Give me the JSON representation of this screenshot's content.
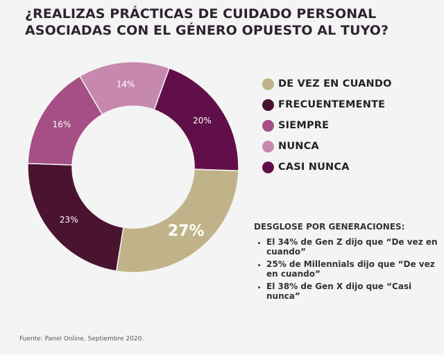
{
  "title_lines": [
    "¿REALIZAS PRÁCTICAS DE CUIDADO PERSONAL",
    "ASOCIADAS CON EL GÉNERO OPUESTO AL TUYO?"
  ],
  "chart_data": {
    "type": "pie",
    "variant": "donut",
    "slices": [
      {
        "label": "CASI NUNCA",
        "value": 20,
        "display": "20%",
        "color": "#610f4a"
      },
      {
        "label": "DE VEZ EN CUANDO",
        "value": 27,
        "display": "27%",
        "color": "#c1b389"
      },
      {
        "label": "FRECUENTEMENTE",
        "value": 23,
        "display": "23%",
        "color": "#4a1430"
      },
      {
        "label": "SIEMPRE",
        "value": 16,
        "display": "16%",
        "color": "#a54f86"
      },
      {
        "label": "NUNCA",
        "value": 14,
        "display": "14%",
        "color": "#c688ae"
      }
    ],
    "legend_order": [
      "DE VEZ EN CUANDO",
      "FRECUENTEMENTE",
      "SIEMPRE",
      "NUNCA",
      "CASI NUNCA"
    ],
    "legend_position": "right"
  },
  "breakdown": {
    "title": "DESGLOSE POR GENERACIONES:",
    "items": [
      "El 34% de Gen Z dijo que “De vez en cuando”",
      "25% de Millennials dijo que “De vez en cuando”",
      "El 38% de Gen X dijo que “Casi nunca”"
    ]
  },
  "source": "Fuente: Panel Online, Septiembre 2020."
}
